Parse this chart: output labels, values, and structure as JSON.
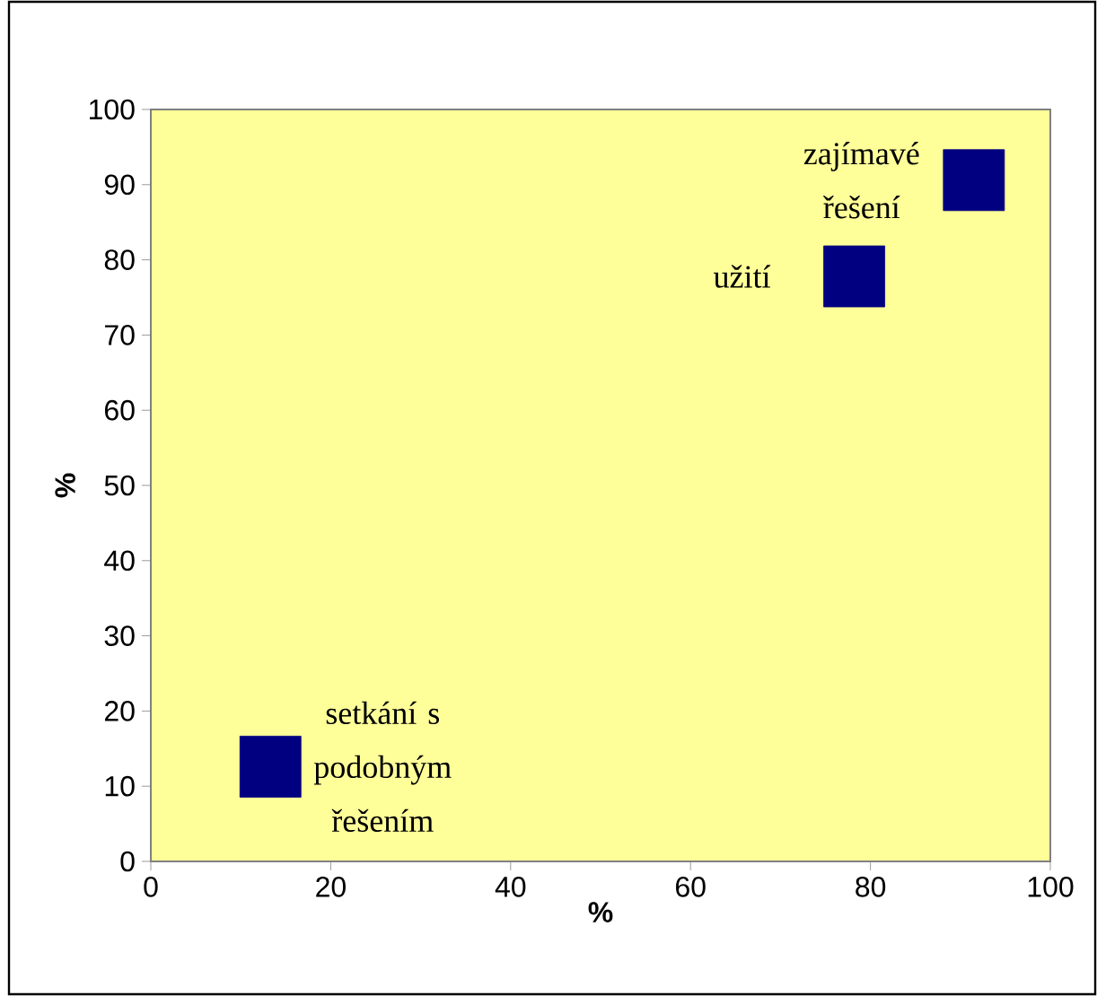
{
  "chart_data": {
    "type": "scatter",
    "xlabel": "%",
    "ylabel": "%",
    "x": [
      13.3,
      78.2,
      91.5
    ],
    "series": [
      {
        "color": "#000080",
        "values": [
          12.6,
          77.8,
          90.6
        ]
      }
    ],
    "marker": "square",
    "xlim": [
      0,
      100
    ],
    "ylim": [
      0,
      100
    ],
    "xticks": [
      0,
      20,
      40,
      60,
      80,
      100
    ],
    "yticks": [
      0,
      10,
      20,
      30,
      40,
      50,
      60,
      70,
      80,
      90,
      100
    ],
    "annotations": [
      {
        "text": "setkání s podobným řešením",
        "x": 13.3,
        "y": 12.6
      },
      {
        "text": "užití",
        "x": 78.2,
        "y": 77.8
      },
      {
        "text": "zajímavé řešení",
        "x": 91.5,
        "y": 90.6
      }
    ]
  }
}
